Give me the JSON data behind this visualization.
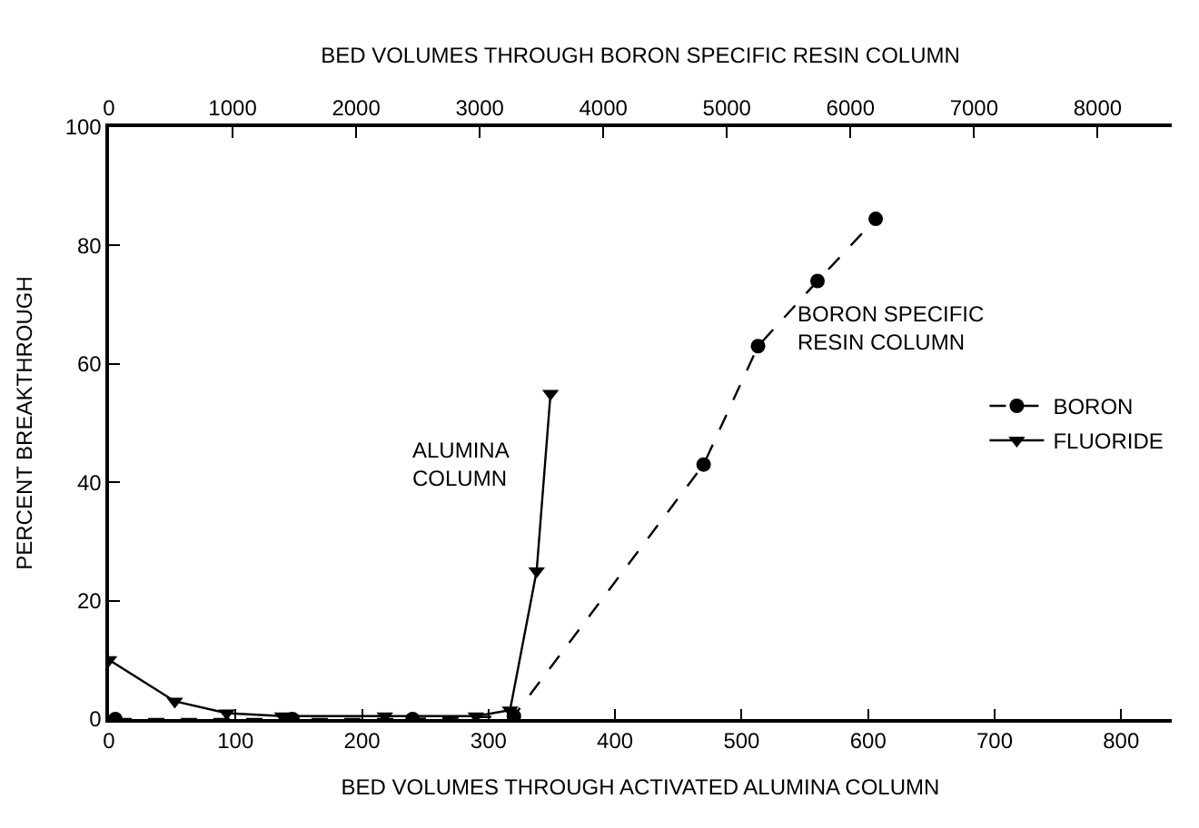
{
  "chart_data": {
    "type": "line",
    "xlabel": "BED VOLUMES THROUGH ACTIVATED ALUMINA COLUMN",
    "x2label": "BED VOLUMES THROUGH BORON SPECIFIC RESIN COLUMN",
    "ylabel": "PERCENT BREAKTHROUGH",
    "xlim": [
      0,
      840
    ],
    "xticks": [
      0,
      100,
      200,
      300,
      400,
      500,
      600,
      700,
      800
    ],
    "x2lim": [
      0,
      8600
    ],
    "x2ticks": [
      0,
      1000,
      2000,
      3000,
      4000,
      5000,
      6000,
      7000,
      8000
    ],
    "ylim": [
      0,
      100
    ],
    "yticks": [
      0,
      20,
      40,
      60,
      80,
      100
    ],
    "grid": false,
    "legend": "right",
    "annotations": [
      "ALUMINA\nCOLUMN",
      "BORON SPECIFIC\nRESIN COLUMN"
    ],
    "series": [
      {
        "name": "BORON",
        "color": "#000000",
        "marker": "circle",
        "line_style": "dashed",
        "x": [
          5,
          145,
          240,
          320,
          470,
          513,
          560,
          606
        ],
        "values": [
          0,
          0,
          0,
          0.5,
          43,
          63,
          74,
          84.5
        ]
      },
      {
        "name": "FLUORIDE",
        "color": "#000000",
        "marker": "triangle",
        "line_style": "solid",
        "x": [
          0,
          52,
          93,
          137,
          218,
          290,
          317,
          338,
          349
        ],
        "values": [
          10,
          3,
          1,
          0.5,
          0.5,
          0.5,
          1.5,
          25,
          55
        ]
      }
    ]
  }
}
